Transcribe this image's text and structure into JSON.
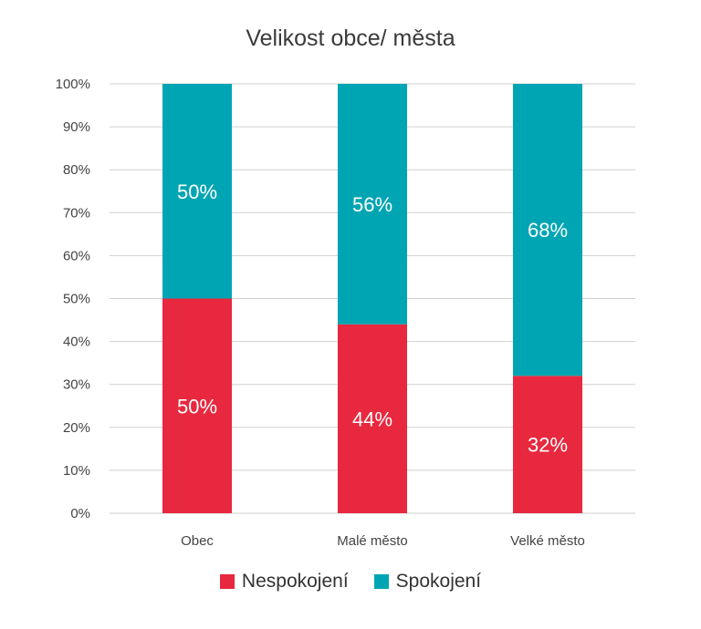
{
  "chart_data": {
    "type": "bar",
    "stacked": true,
    "title": "Velikost obce/ města",
    "categories": [
      "Obec",
      "Malé město",
      "Velké město"
    ],
    "series": [
      {
        "name": "Nespokojení",
        "color": "#e8283f",
        "values": [
          50,
          44,
          32
        ],
        "labels": [
          "50%",
          "44%",
          "32%"
        ]
      },
      {
        "name": "Spokojení",
        "color": "#00a5b3",
        "values": [
          50,
          56,
          68
        ],
        "labels": [
          "50%",
          "56%",
          "68%"
        ]
      }
    ],
    "yticks": [
      "0%",
      "10%",
      "20%",
      "30%",
      "40%",
      "50%",
      "60%",
      "70%",
      "80%",
      "90%",
      "100%"
    ],
    "ylim": [
      0,
      100
    ],
    "grid": true,
    "legend": "bottom-center"
  }
}
